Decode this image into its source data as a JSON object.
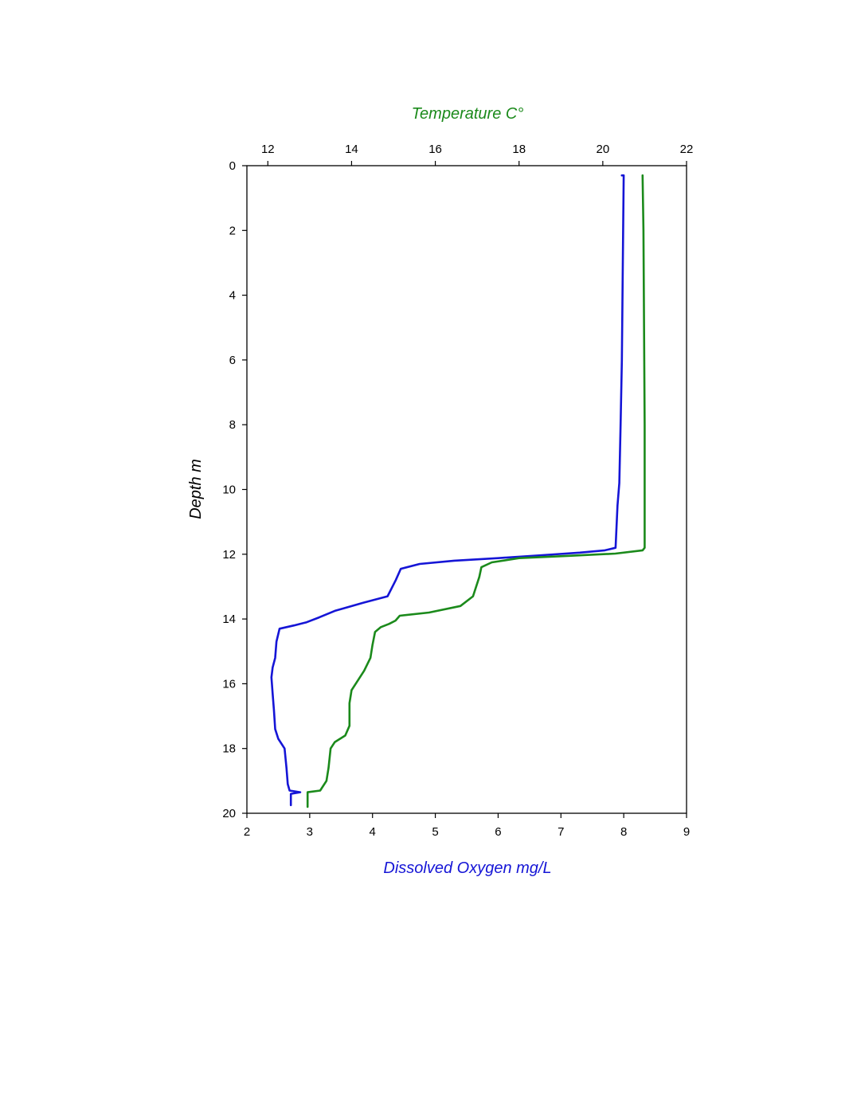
{
  "chart_data": {
    "type": "line",
    "title": "",
    "depth_axis": {
      "label": "Depth m",
      "range": [
        0,
        20
      ],
      "ticks": [
        0,
        2,
        4,
        6,
        8,
        10,
        12,
        14,
        16,
        18,
        20
      ],
      "inverted": true
    },
    "oxygen_axis": {
      "label": "Dissolved Oxygen mg/L",
      "position": "bottom",
      "range": [
        2,
        9
      ],
      "ticks": [
        2,
        3,
        4,
        5,
        6,
        7,
        8,
        9
      ],
      "color": "#1515d6"
    },
    "temperature_axis": {
      "label": "Temperature C°",
      "position": "top",
      "range": [
        11.5,
        22
      ],
      "ticks": [
        12,
        14,
        16,
        18,
        20,
        22
      ],
      "color": "#1b8a1b"
    },
    "grid": false,
    "legend": "none",
    "series": [
      {
        "quantity": "dissolved_oxygen",
        "axis": "oxygen_axis",
        "color": "#1515d6",
        "points": [
          {
            "x": 7.97,
            "depth": 0.3
          },
          {
            "x": 8.0,
            "depth": 0.3
          },
          {
            "x": 7.99,
            "depth": 2.0
          },
          {
            "x": 7.98,
            "depth": 4.0
          },
          {
            "x": 7.97,
            "depth": 6.0
          },
          {
            "x": 7.95,
            "depth": 8.0
          },
          {
            "x": 7.93,
            "depth": 9.8
          },
          {
            "x": 7.9,
            "depth": 10.5
          },
          {
            "x": 7.87,
            "depth": 11.8
          },
          {
            "x": 7.7,
            "depth": 11.88
          },
          {
            "x": 7.3,
            "depth": 11.95
          },
          {
            "x": 6.7,
            "depth": 12.03
          },
          {
            "x": 6.0,
            "depth": 12.12
          },
          {
            "x": 5.3,
            "depth": 12.2
          },
          {
            "x": 4.75,
            "depth": 12.3
          },
          {
            "x": 4.45,
            "depth": 12.45
          },
          {
            "x": 4.37,
            "depth": 12.8
          },
          {
            "x": 4.24,
            "depth": 13.3
          },
          {
            "x": 3.85,
            "depth": 13.5
          },
          {
            "x": 3.4,
            "depth": 13.75
          },
          {
            "x": 3.15,
            "depth": 13.95
          },
          {
            "x": 2.95,
            "depth": 14.1
          },
          {
            "x": 2.75,
            "depth": 14.2
          },
          {
            "x": 2.52,
            "depth": 14.3
          },
          {
            "x": 2.47,
            "depth": 14.7
          },
          {
            "x": 2.45,
            "depth": 15.2
          },
          {
            "x": 2.41,
            "depth": 15.5
          },
          {
            "x": 2.39,
            "depth": 15.8
          },
          {
            "x": 2.41,
            "depth": 16.3
          },
          {
            "x": 2.43,
            "depth": 16.8
          },
          {
            "x": 2.45,
            "depth": 17.4
          },
          {
            "x": 2.5,
            "depth": 17.7
          },
          {
            "x": 2.6,
            "depth": 18.0
          },
          {
            "x": 2.63,
            "depth": 18.6
          },
          {
            "x": 2.65,
            "depth": 19.1
          },
          {
            "x": 2.68,
            "depth": 19.3
          },
          {
            "x": 2.85,
            "depth": 19.35
          },
          {
            "x": 2.7,
            "depth": 19.4
          },
          {
            "x": 2.7,
            "depth": 19.75
          }
        ]
      },
      {
        "quantity": "temperature",
        "axis": "temperature_axis",
        "color": "#1b8a1b",
        "points": [
          {
            "x": 20.95,
            "depth": 0.3
          },
          {
            "x": 20.97,
            "depth": 2.0
          },
          {
            "x": 20.98,
            "depth": 4.0
          },
          {
            "x": 20.99,
            "depth": 6.0
          },
          {
            "x": 21.0,
            "depth": 8.0
          },
          {
            "x": 21.0,
            "depth": 10.0
          },
          {
            "x": 21.0,
            "depth": 11.8
          },
          {
            "x": 20.95,
            "depth": 11.88
          },
          {
            "x": 20.3,
            "depth": 11.98
          },
          {
            "x": 19.2,
            "depth": 12.05
          },
          {
            "x": 18.0,
            "depth": 12.12
          },
          {
            "x": 17.35,
            "depth": 12.25
          },
          {
            "x": 17.1,
            "depth": 12.4
          },
          {
            "x": 17.05,
            "depth": 12.7
          },
          {
            "x": 16.9,
            "depth": 13.3
          },
          {
            "x": 16.6,
            "depth": 13.6
          },
          {
            "x": 15.85,
            "depth": 13.8
          },
          {
            "x": 15.15,
            "depth": 13.9
          },
          {
            "x": 15.05,
            "depth": 14.05
          },
          {
            "x": 14.9,
            "depth": 14.15
          },
          {
            "x": 14.7,
            "depth": 14.25
          },
          {
            "x": 14.56,
            "depth": 14.4
          },
          {
            "x": 14.5,
            "depth": 14.8
          },
          {
            "x": 14.45,
            "depth": 15.2
          },
          {
            "x": 14.3,
            "depth": 15.6
          },
          {
            "x": 14.15,
            "depth": 15.9
          },
          {
            "x": 14.0,
            "depth": 16.2
          },
          {
            "x": 13.95,
            "depth": 16.6
          },
          {
            "x": 13.95,
            "depth": 17.3
          },
          {
            "x": 13.85,
            "depth": 17.6
          },
          {
            "x": 13.6,
            "depth": 17.8
          },
          {
            "x": 13.5,
            "depth": 18.0
          },
          {
            "x": 13.45,
            "depth": 18.6
          },
          {
            "x": 13.4,
            "depth": 19.0
          },
          {
            "x": 13.25,
            "depth": 19.3
          },
          {
            "x": 12.95,
            "depth": 19.35
          },
          {
            "x": 12.95,
            "depth": 19.8
          }
        ]
      }
    ]
  }
}
